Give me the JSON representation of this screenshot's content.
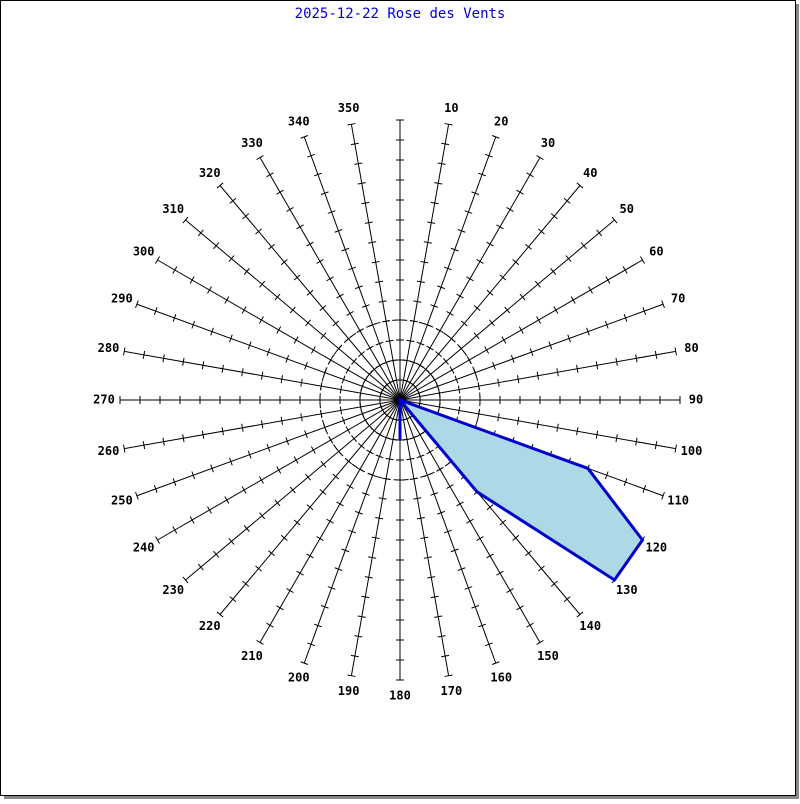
{
  "chart_data": {
    "type": "polar",
    "title": "2025-12-22 Rose des Vents",
    "categories": [
      null,
      "10",
      "20",
      "30",
      "40",
      "50",
      "60",
      "70",
      "80",
      "90",
      "100",
      "110",
      "120",
      "130",
      "140",
      "150",
      "160",
      "170",
      "180",
      "190",
      "200",
      "210",
      "220",
      "230",
      "240",
      "250",
      "260",
      "270",
      "280",
      "290",
      "300",
      "310",
      "320",
      "330",
      "340",
      "350"
    ],
    "series": [
      {
        "color": "#0000cc",
        "fill": "#add8e6",
        "values": [
          0,
          0,
          0,
          0,
          0,
          0,
          0,
          0,
          0,
          0,
          0,
          10,
          14,
          14,
          6,
          0,
          0,
          0,
          2,
          0,
          0,
          0,
          0,
          0,
          0,
          0,
          0,
          0,
          0,
          0,
          0,
          0,
          0,
          0,
          0,
          0
        ]
      }
    ],
    "rlim": [
      0,
      14
    ],
    "rticks": [
      1,
      2,
      3,
      4,
      5,
      6,
      7,
      8,
      9,
      10,
      11,
      12,
      13,
      14
    ]
  }
}
